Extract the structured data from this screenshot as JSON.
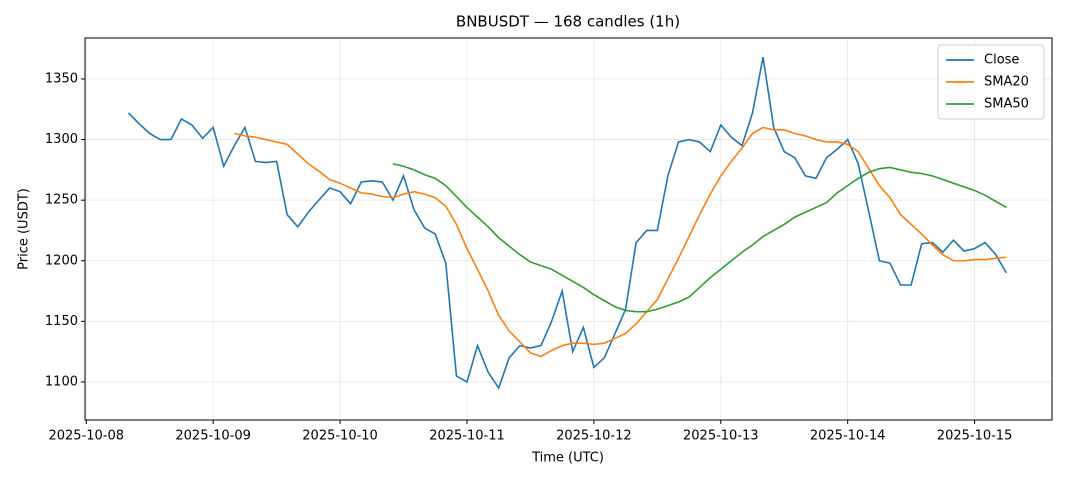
{
  "chart_data": {
    "type": "line",
    "title": "BNBUSDT — 168 candles (1h)",
    "x_label": "Time (UTC)",
    "y_label": "Price (USDT)",
    "x": [
      0.333,
      0.417,
      0.5,
      0.583,
      0.667,
      0.75,
      0.833,
      0.917,
      1,
      1.083,
      1.167,
      1.25,
      1.333,
      1.417,
      1.5,
      1.583,
      1.667,
      1.75,
      1.833,
      1.917,
      2,
      2.083,
      2.167,
      2.25,
      2.333,
      2.417,
      2.5,
      2.583,
      2.667,
      2.75,
      2.833,
      2.917,
      3,
      3.083,
      3.167,
      3.25,
      3.333,
      3.417,
      3.5,
      3.583,
      3.667,
      3.75,
      3.833,
      3.917,
      4,
      4.083,
      4.167,
      4.25,
      4.333,
      4.417,
      4.5,
      4.583,
      4.667,
      4.75,
      4.833,
      4.917,
      5,
      5.083,
      5.167,
      5.25,
      5.333,
      5.417,
      5.5,
      5.583,
      5.667,
      5.75,
      5.833,
      5.917,
      6,
      6.083,
      6.167,
      6.25,
      6.333,
      6.417,
      6.5,
      6.583,
      6.667,
      6.75,
      6.833,
      6.917,
      7,
      7.083,
      7.167,
      7.25
    ],
    "series": [
      {
        "name": "Close",
        "color": "#1f77b4",
        "values": [
          1322,
          1313,
          1305,
          1300,
          1300,
          1317,
          1312,
          1301,
          1310,
          1278,
          1295,
          1310,
          1282,
          1281,
          1282,
          1238,
          1228,
          1240,
          1250,
          1260,
          1257,
          1247,
          1265,
          1266,
          1265,
          1250,
          1270,
          1242,
          1227,
          1222,
          1198,
          1105,
          1100,
          1130,
          1108,
          1095,
          1120,
          1130,
          1128,
          1130,
          1150,
          1175,
          1125,
          1145,
          1112,
          1120,
          1140,
          1160,
          1215,
          1225,
          1225,
          1270,
          1298,
          1300,
          1298,
          1290,
          1312,
          1302,
          1295,
          1322,
          1368,
          1310,
          1290,
          1285,
          1270,
          1268,
          1285,
          1292,
          1300,
          1280,
          1240,
          1200,
          1198,
          1180,
          1180,
          1214,
          1215,
          1207,
          1217,
          1208,
          1210,
          1215,
          1205,
          1190
        ]
      },
      {
        "name": "SMA20",
        "color": "#ff7f0e",
        "values": [
          null,
          null,
          null,
          null,
          null,
          null,
          null,
          null,
          null,
          null,
          1305,
          1303,
          1302,
          1300,
          1298,
          1296,
          1288,
          1280,
          1274,
          1267,
          1264,
          1260,
          1256,
          1255,
          1253,
          1252,
          1255,
          1257,
          1255,
          1252,
          1245,
          1230,
          1210,
          1193,
          1175,
          1155,
          1142,
          1133,
          1124,
          1121,
          1126,
          1130,
          1132,
          1132,
          1131,
          1132,
          1136,
          1140,
          1148,
          1158,
          1168,
          1185,
          1202,
          1220,
          1238,
          1255,
          1270,
          1282,
          1293,
          1305,
          1310,
          1308,
          1308,
          1305,
          1303,
          1300,
          1298,
          1298,
          1296,
          1290,
          1276,
          1262,
          1252,
          1238,
          1230,
          1222,
          1213,
          1205,
          1200,
          1200,
          1201,
          1201,
          1202,
          1203
        ]
      },
      {
        "name": "SMA50",
        "color": "#2ca02c",
        "values": [
          null,
          null,
          null,
          null,
          null,
          null,
          null,
          null,
          null,
          null,
          null,
          null,
          null,
          null,
          null,
          null,
          null,
          null,
          null,
          null,
          null,
          null,
          null,
          null,
          null,
          1280,
          1278,
          1275,
          1271,
          1268,
          1262,
          1253,
          1244,
          1236,
          1228,
          1219,
          1212,
          1205,
          1199,
          1196,
          1193,
          1188,
          1183,
          1178,
          1172,
          1167,
          1162,
          1159,
          1158,
          1158,
          1160,
          1163,
          1166,
          1170,
          1178,
          1186,
          1193,
          1200,
          1207,
          1213,
          1220,
          1225,
          1230,
          1236,
          1240,
          1244,
          1248,
          1256,
          1262,
          1268,
          1273,
          1276,
          1277,
          1275,
          1273,
          1272,
          1270,
          1267,
          1264,
          1261,
          1258,
          1254,
          1249,
          1244
        ]
      }
    ],
    "xlim": [
      -0.01,
      7.61
    ],
    "ylim": [
      1068.6,
      1383.8
    ],
    "xticks": [
      {
        "value": 0,
        "label": "2025-10-08"
      },
      {
        "value": 1,
        "label": "2025-10-09"
      },
      {
        "value": 2,
        "label": "2025-10-10"
      },
      {
        "value": 3,
        "label": "2025-10-11"
      },
      {
        "value": 4,
        "label": "2025-10-12"
      },
      {
        "value": 5,
        "label": "2025-10-13"
      },
      {
        "value": 6,
        "label": "2025-10-14"
      },
      {
        "value": 7,
        "label": "2025-10-15"
      }
    ],
    "yticks": [
      1100,
      1150,
      1200,
      1250,
      1300,
      1350
    ],
    "grid": true,
    "legend": "upper right"
  }
}
